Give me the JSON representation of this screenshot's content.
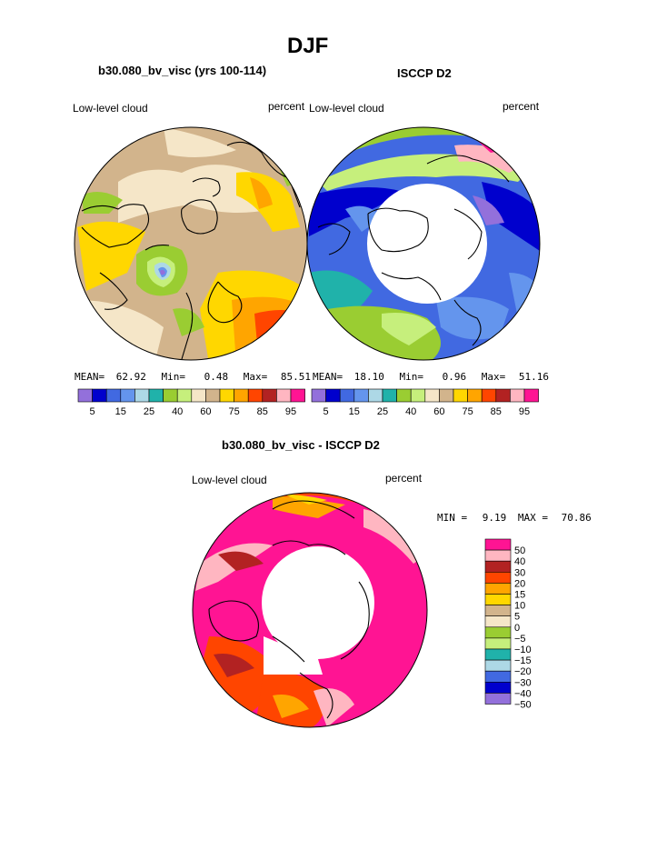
{
  "page": {
    "title": "DJF",
    "left_title": "b30.080_bv_visc (yrs 100-114)",
    "right_title": "ISCCP D2",
    "diff_title": "b30.080_bv_visc - ISCCP D2"
  },
  "chart_data": [
    {
      "type": "map",
      "name": "model",
      "variable": "Low-level cloud",
      "units": "percent",
      "stats": {
        "mean_label": "MEAN=",
        "mean": "62.92",
        "min_label": "Min=",
        "min": "0.48",
        "max_label": "Max=",
        "max": "85.51"
      },
      "colorbar": {
        "labels": [
          "5",
          "15",
          "25",
          "40",
          "60",
          "75",
          "85",
          "95"
        ],
        "colors": [
          "#9370DB",
          "#0000CD",
          "#4169E1",
          "#6495ED",
          "#ADD8E6",
          "#20B2AA",
          "#9ACD32",
          "#C6EF7C",
          "#F5E6C8",
          "#D2B48C",
          "#FFD700",
          "#FFA500",
          "#FF4500",
          "#B22222",
          "#FFB6C1",
          "#FF1493"
        ]
      }
    },
    {
      "type": "map",
      "name": "observations",
      "variable": "Low-level cloud",
      "units": "percent",
      "stats": {
        "mean_label": "MEAN=",
        "mean": "18.10",
        "min_label": "Min=",
        "min": "0.96",
        "max_label": "Max=",
        "max": "51.16"
      },
      "colorbar": {
        "labels": [
          "5",
          "15",
          "25",
          "40",
          "60",
          "75",
          "85",
          "95"
        ],
        "colors": [
          "#9370DB",
          "#0000CD",
          "#4169E1",
          "#6495ED",
          "#ADD8E6",
          "#20B2AA",
          "#9ACD32",
          "#C6EF7C",
          "#F5E6C8",
          "#D2B48C",
          "#FFD700",
          "#FFA500",
          "#FF4500",
          "#B22222",
          "#FFB6C1",
          "#FF1493"
        ]
      }
    },
    {
      "type": "map",
      "name": "difference",
      "variable": "Low-level cloud",
      "units": "percent",
      "stats": {
        "min_label": "MIN =",
        "min": "9.19",
        "max_label": "MAX =",
        "max": "70.86"
      },
      "colorbar": {
        "labels": [
          "50",
          "40",
          "30",
          "20",
          "15",
          "10",
          "5",
          "0",
          "−5",
          "−10",
          "−15",
          "−20",
          "−30",
          "−40",
          "−50"
        ],
        "colors": [
          "#FF1493",
          "#FFB6C1",
          "#B22222",
          "#FF4500",
          "#FFA500",
          "#FFD700",
          "#D2B48C",
          "#F5E6C8",
          "#9ACD32",
          "#C6EF7C",
          "#20B2AA",
          "#ADD8E6",
          "#4169E1",
          "#0000CD",
          "#9370DB"
        ]
      }
    }
  ]
}
